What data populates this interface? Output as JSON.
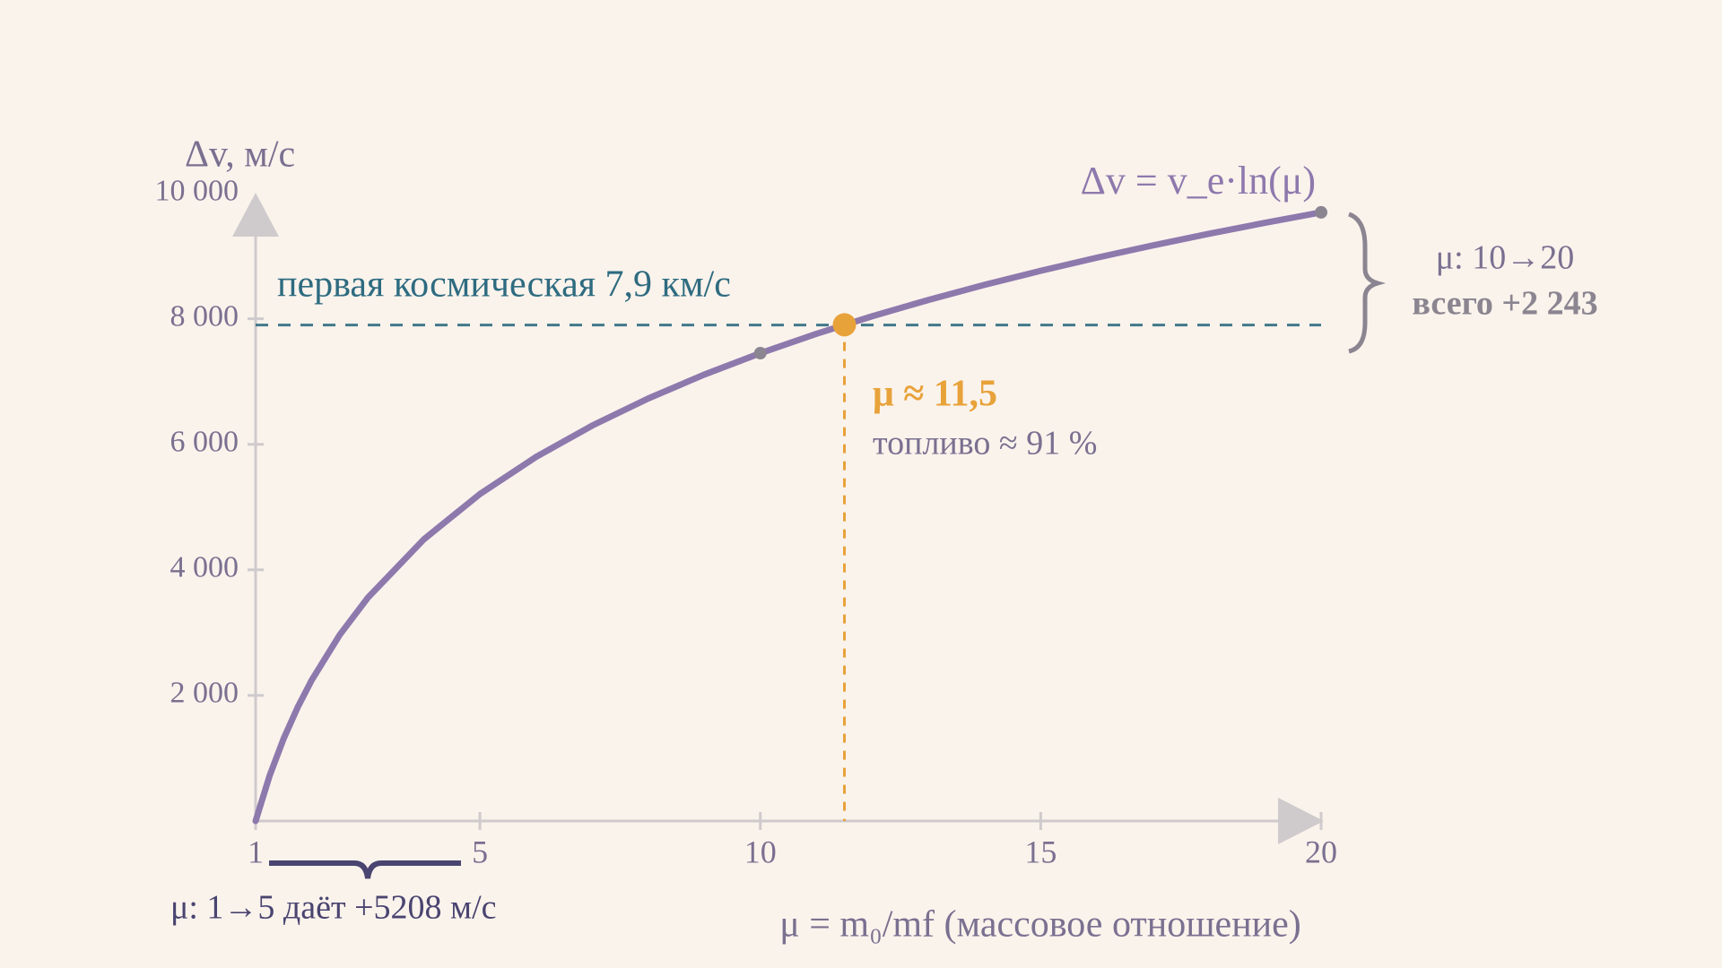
{
  "chart_data": {
    "type": "line",
    "formula": "Δv = v_e·ln(μ)",
    "xlabel": "μ = m₀/mf  (массовое отношение)",
    "ylabel": "Δv, м/с",
    "x": [
      1,
      1.25,
      1.5,
      1.75,
      2,
      2.5,
      3,
      4,
      5,
      6,
      7,
      8,
      9,
      10,
      11,
      12,
      13,
      14,
      15,
      16,
      17,
      18,
      19,
      20
    ],
    "series": [
      {
        "color": "#8e79ad",
        "values": [
          0,
          722,
          1312,
          1811,
          2243,
          2965,
          3555,
          4486,
          5208,
          5798,
          6297,
          6729,
          7110,
          7451,
          7760,
          8041,
          8300,
          8540,
          8763,
          8972,
          9168,
          9353,
          9528,
          9694
        ]
      }
    ],
    "xlim": [
      1,
      20
    ],
    "ylim": [
      0,
      10000
    ],
    "xticks": [
      1,
      5,
      10,
      15,
      20
    ],
    "yticks": [
      {
        "value": 2000,
        "label": "2 000"
      },
      {
        "value": 4000,
        "label": "4 000"
      },
      {
        "value": 6000,
        "label": "6 000"
      },
      {
        "value": 8000,
        "label": "8 000"
      },
      {
        "value": 10000,
        "label": "10 000"
      }
    ],
    "points": [
      {
        "x": 10,
        "y": 7451,
        "color": "#8a8590"
      },
      {
        "x": 11.5,
        "y": 7904,
        "color": "#e8a23a"
      },
      {
        "x": 20,
        "y": 9694,
        "color": "#8a8590"
      }
    ],
    "hline": {
      "value": 7900,
      "label": "первая космическая  7,9 км/с",
      "color": "#2e6b80"
    },
    "vline": {
      "value": 11.5,
      "color": "#e8a23a"
    },
    "crossing_labels": [
      "μ  ≈  11,5",
      "топливо  ≈  91 %"
    ],
    "range_right": [
      "μ: 10→20",
      "всего +2 243"
    ],
    "range_bottom": "μ: 1→5  даёт  +5208 м/с"
  }
}
